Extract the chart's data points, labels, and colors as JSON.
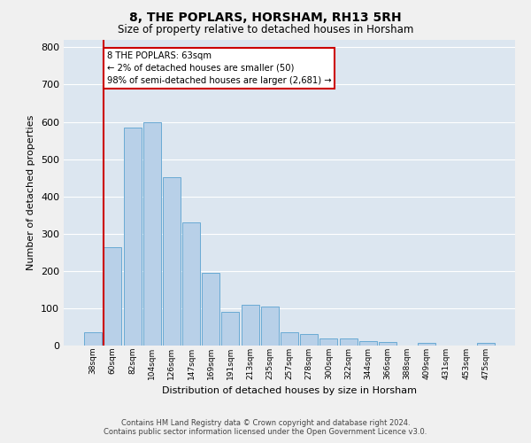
{
  "title": "8, THE POPLARS, HORSHAM, RH13 5RH",
  "subtitle": "Size of property relative to detached houses in Horsham",
  "xlabel": "Distribution of detached houses by size in Horsham",
  "ylabel": "Number of detached properties",
  "categories": [
    "38sqm",
    "60sqm",
    "82sqm",
    "104sqm",
    "126sqm",
    "147sqm",
    "169sqm",
    "191sqm",
    "213sqm",
    "235sqm",
    "257sqm",
    "278sqm",
    "300sqm",
    "322sqm",
    "344sqm",
    "366sqm",
    "388sqm",
    "409sqm",
    "431sqm",
    "453sqm",
    "475sqm"
  ],
  "values": [
    35,
    265,
    585,
    600,
    452,
    330,
    196,
    90,
    110,
    105,
    35,
    32,
    18,
    18,
    12,
    10,
    0,
    7,
    0,
    0,
    8
  ],
  "bar_color": "#b8d0e8",
  "bar_edge_color": "#6aaad4",
  "background_color": "#dce6f0",
  "grid_color": "#ffffff",
  "annotation_box_text": "8 THE POPLARS: 63sqm\n← 2% of detached houses are smaller (50)\n98% of semi-detached houses are larger (2,681) →",
  "annotation_box_color": "#cc0000",
  "annotation_box_bg": "#ffffff",
  "marker_color": "#cc0000",
  "ylim": [
    0,
    820
  ],
  "yticks": [
    0,
    100,
    200,
    300,
    400,
    500,
    600,
    700,
    800
  ],
  "footer_line1": "Contains HM Land Registry data © Crown copyright and database right 2024.",
  "footer_line2": "Contains public sector information licensed under the Open Government Licence v3.0."
}
